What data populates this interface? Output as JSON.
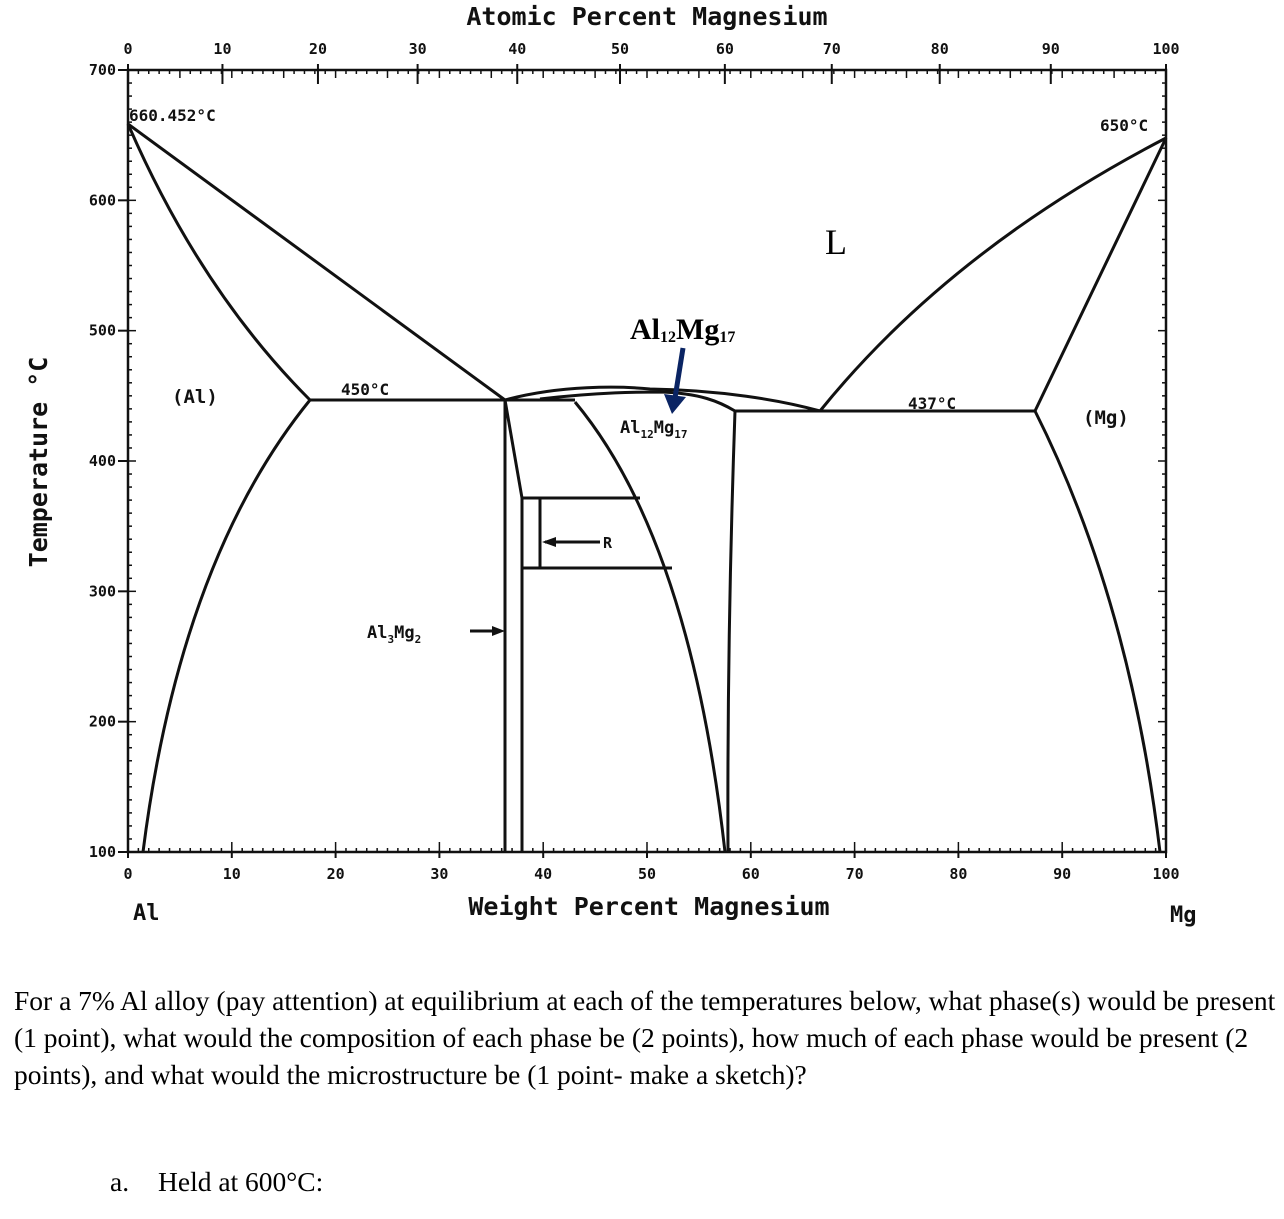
{
  "diagram": {
    "top_axis_title": "Atomic Percent Magnesium",
    "bottom_axis_title": "Weight Percent Magnesium",
    "y_axis_title": "Temperature °C",
    "left_element": "Al",
    "right_element": "Mg",
    "top_ticks": [
      "0",
      "10",
      "20",
      "30",
      "40",
      "50",
      "60",
      "70",
      "80",
      "90",
      "100"
    ],
    "top_tick_wt_positions": [
      0,
      9.1,
      18.3,
      27.9,
      37.5,
      47.4,
      57.5,
      67.8,
      78.2,
      88.9,
      100
    ],
    "bottom_ticks": [
      "0",
      "10",
      "20",
      "30",
      "40",
      "50",
      "60",
      "70",
      "80",
      "90",
      "100"
    ],
    "y_ticks": [
      "700",
      "600",
      "500",
      "400",
      "300",
      "200",
      "100"
    ],
    "y_range": [
      100,
      700
    ],
    "x_range": [
      0,
      100
    ],
    "labels": {
      "al_melting": "660.452°C",
      "mg_melting": "650°C",
      "eutectic_left": "450°C",
      "eutectic_right": "437°C",
      "liquid": "L",
      "al_phase": "(Al)",
      "mg_phase": "(Mg)",
      "al12mg17_inner": "Al",
      "al12mg17_inner_sub1": "12",
      "al12mg17_inner_mid": "Mg",
      "al12mg17_inner_sub2": "17",
      "al3mg2": "Al",
      "al3mg2_sub1": "3",
      "al3mg2_mid": "Mg",
      "al3mg2_sub2": "2",
      "r_phase": "R",
      "annotation_main": "Al",
      "annotation_sub1": "12",
      "annotation_mid": "Mg",
      "annotation_sub2": "17"
    },
    "annotation_arrow_color": "#0a2463"
  },
  "question": {
    "text": "For a 7% Al alloy (pay attention) at equilibrium at each of the temperatures below, what phase(s) would be present (1 point), what would the composition of each phase be (2 points), how much of each phase would be present (2 points), and what would the microstructure be (1 point- make a sketch)?",
    "part_a_letter": "a.",
    "part_a_text": "Held at 600°C:"
  }
}
